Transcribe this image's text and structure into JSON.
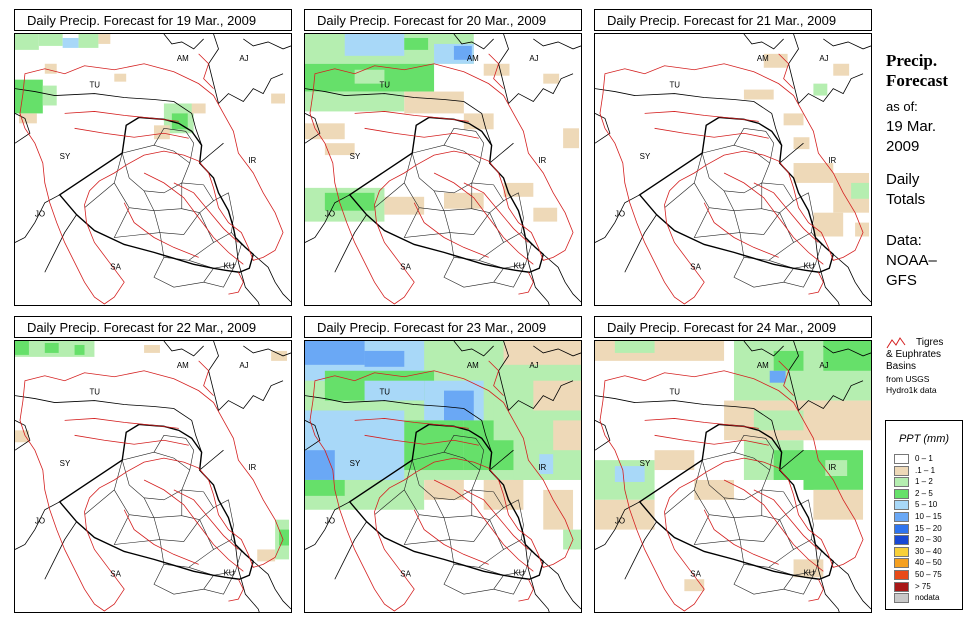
{
  "panels": [
    {
      "title": "Daily Precip. Forecast for  19 Mar., 2009",
      "rain": "p19"
    },
    {
      "title": "Daily Precip. Forecast for  20 Mar., 2009",
      "rain": "p20"
    },
    {
      "title": "Daily Precip. Forecast for  21 Mar., 2009",
      "rain": "p21"
    },
    {
      "title": "Daily Precip. Forecast for  22 Mar., 2009",
      "rain": "p22"
    },
    {
      "title": "Daily Precip. Forecast for  23 Mar., 2009",
      "rain": "p23"
    },
    {
      "title": "Daily Precip. Forecast for  24 Mar., 2009",
      "rain": "p24"
    }
  ],
  "map_labels": [
    "AM",
    "AJ",
    "TU",
    "SY",
    "IR",
    "JO",
    "SA",
    "KU"
  ],
  "sidebar": {
    "title_line1": "Precip.",
    "title_line2": "Forecast",
    "asof_line1": "as of:",
    "asof_line2": "19 Mar.",
    "asof_line3": "2009",
    "totals_line1": "Daily",
    "totals_line2": "Totals",
    "data_line1": "Data:",
    "data_line2": "NOAA–",
    "data_line3": "GFS"
  },
  "basin_legend": {
    "line1": "Tigres",
    "line2": "& Euphrates",
    "line3": "Basins",
    "line4": "from USGS",
    "line5": "Hydro1k data",
    "color": "#d42020"
  },
  "legend": {
    "title": "PPT (mm)",
    "items": [
      {
        "label": "0 – 1",
        "color": "#ffffff"
      },
      {
        "label": ".1 – 1",
        "color": "#eed9b8"
      },
      {
        "label": "1 – 2",
        "color": "#b5eeb0"
      },
      {
        "label": "2 – 5",
        "color": "#66e06a"
      },
      {
        "label": "5 – 10",
        "color": "#a8d8f8"
      },
      {
        "label": "10 – 15",
        "color": "#6aa8f5"
      },
      {
        "label": "15 – 20",
        "color": "#2e74ee"
      },
      {
        "label": "20 – 30",
        "color": "#1848d4"
      },
      {
        "label": "30 – 40",
        "color": "#f8d038"
      },
      {
        "label": "40 – 50",
        "color": "#f5a020"
      },
      {
        "label": "50 – 75",
        "color": "#e84a18"
      },
      {
        "label": "> 75",
        "color": "#a81818"
      },
      {
        "label": "nodata",
        "color": "#c8c8c8"
      }
    ]
  }
}
